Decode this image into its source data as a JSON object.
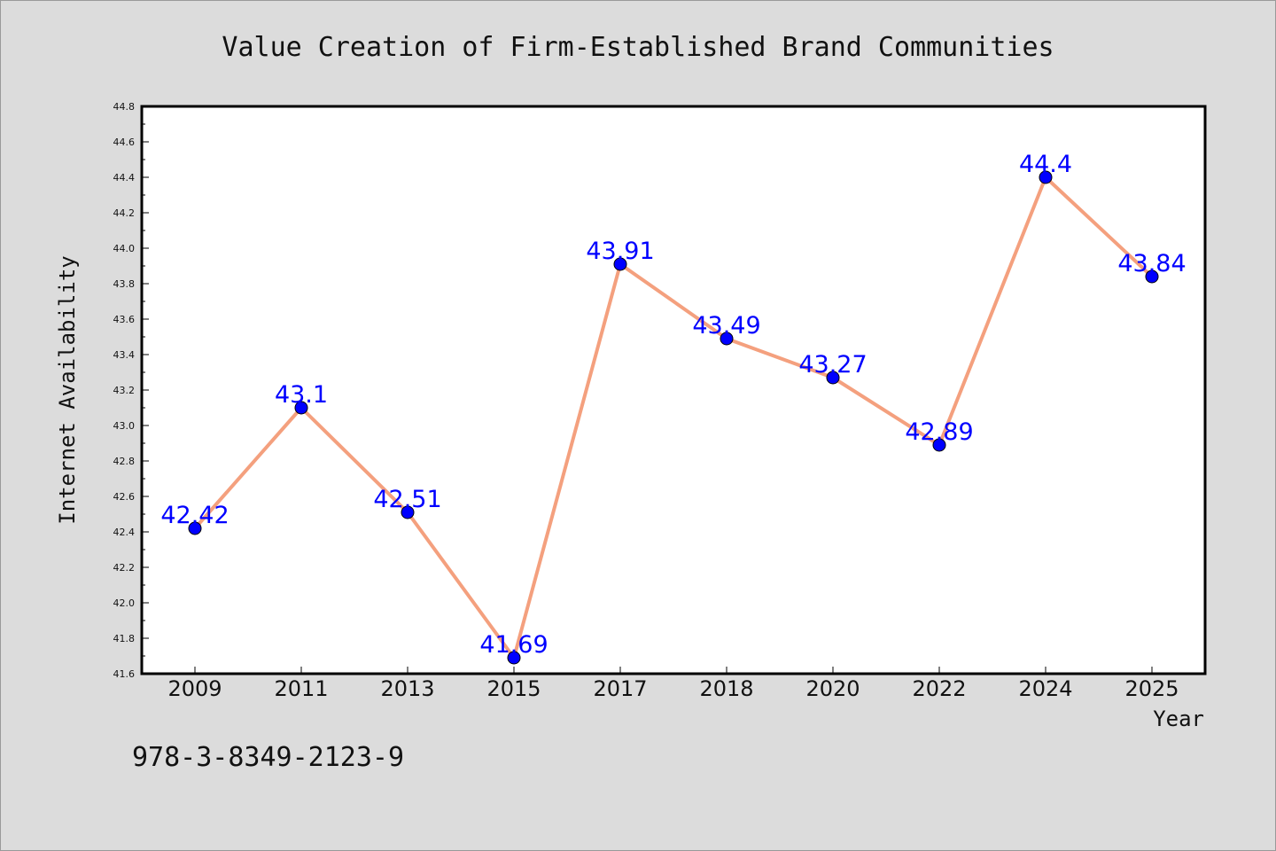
{
  "chart_data": {
    "type": "line",
    "title": "Value Creation of Firm-Established Brand Communities",
    "xlabel": "Year",
    "ylabel": "Internet Availability",
    "categories": [
      "2009",
      "2011",
      "2013",
      "2015",
      "2017",
      "2018",
      "2020",
      "2022",
      "2024",
      "2025"
    ],
    "series": [
      {
        "values": [
          42.42,
          43.1,
          42.51,
          41.69,
          43.91,
          43.49,
          43.27,
          42.89,
          44.4,
          43.84
        ],
        "data_labels": [
          "42.42",
          "43.1",
          "42.51",
          "41.69",
          "43.91",
          "43.49",
          "43.27",
          "42.89",
          "44.4",
          "43.84"
        ]
      }
    ],
    "ylim": [
      41.6,
      44.8
    ],
    "yticks": [
      "41.6",
      "41.8",
      "42.0",
      "42.2",
      "42.4",
      "42.6",
      "42.8",
      "43.0",
      "43.2",
      "43.4",
      "43.6",
      "43.8",
      "44.0",
      "44.2",
      "44.4",
      "44.6",
      "44.8"
    ],
    "grid": false,
    "legend": "none"
  },
  "annotation": {
    "isbn": "978-3-8349-2123-9"
  },
  "colors": {
    "line": "#f4a07e",
    "marker": "#0000ff",
    "data_label": "#0000ff",
    "plot_background": "#ffffff",
    "page_background": "#dcdcdc"
  }
}
